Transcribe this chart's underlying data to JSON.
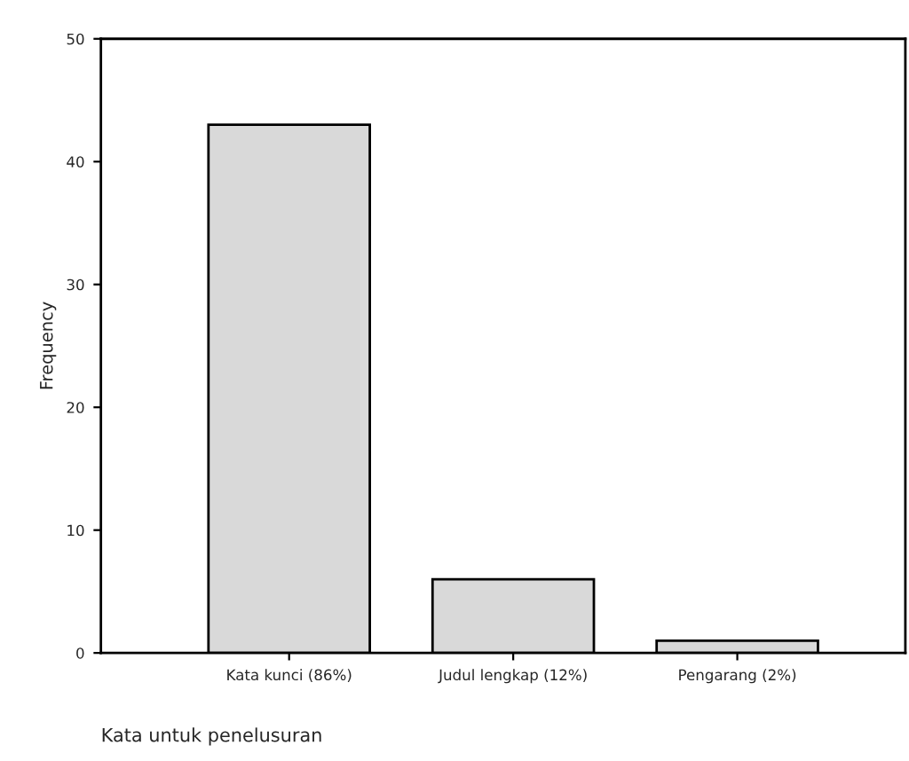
{
  "chart_data": {
    "type": "bar",
    "xlabel": "Kata untuk penelusuran",
    "ylabel": "Frequency",
    "categories": [
      "Kata kunci (86%)",
      "Judul lengkap (12%)",
      "Pengarang (2%)"
    ],
    "values": [
      43,
      6,
      1
    ],
    "color": "#d9d9d9",
    "ylim": [
      0,
      50
    ],
    "yticks": [
      0,
      10,
      20,
      30,
      40,
      50
    ],
    "grid": false,
    "legend": false
  }
}
